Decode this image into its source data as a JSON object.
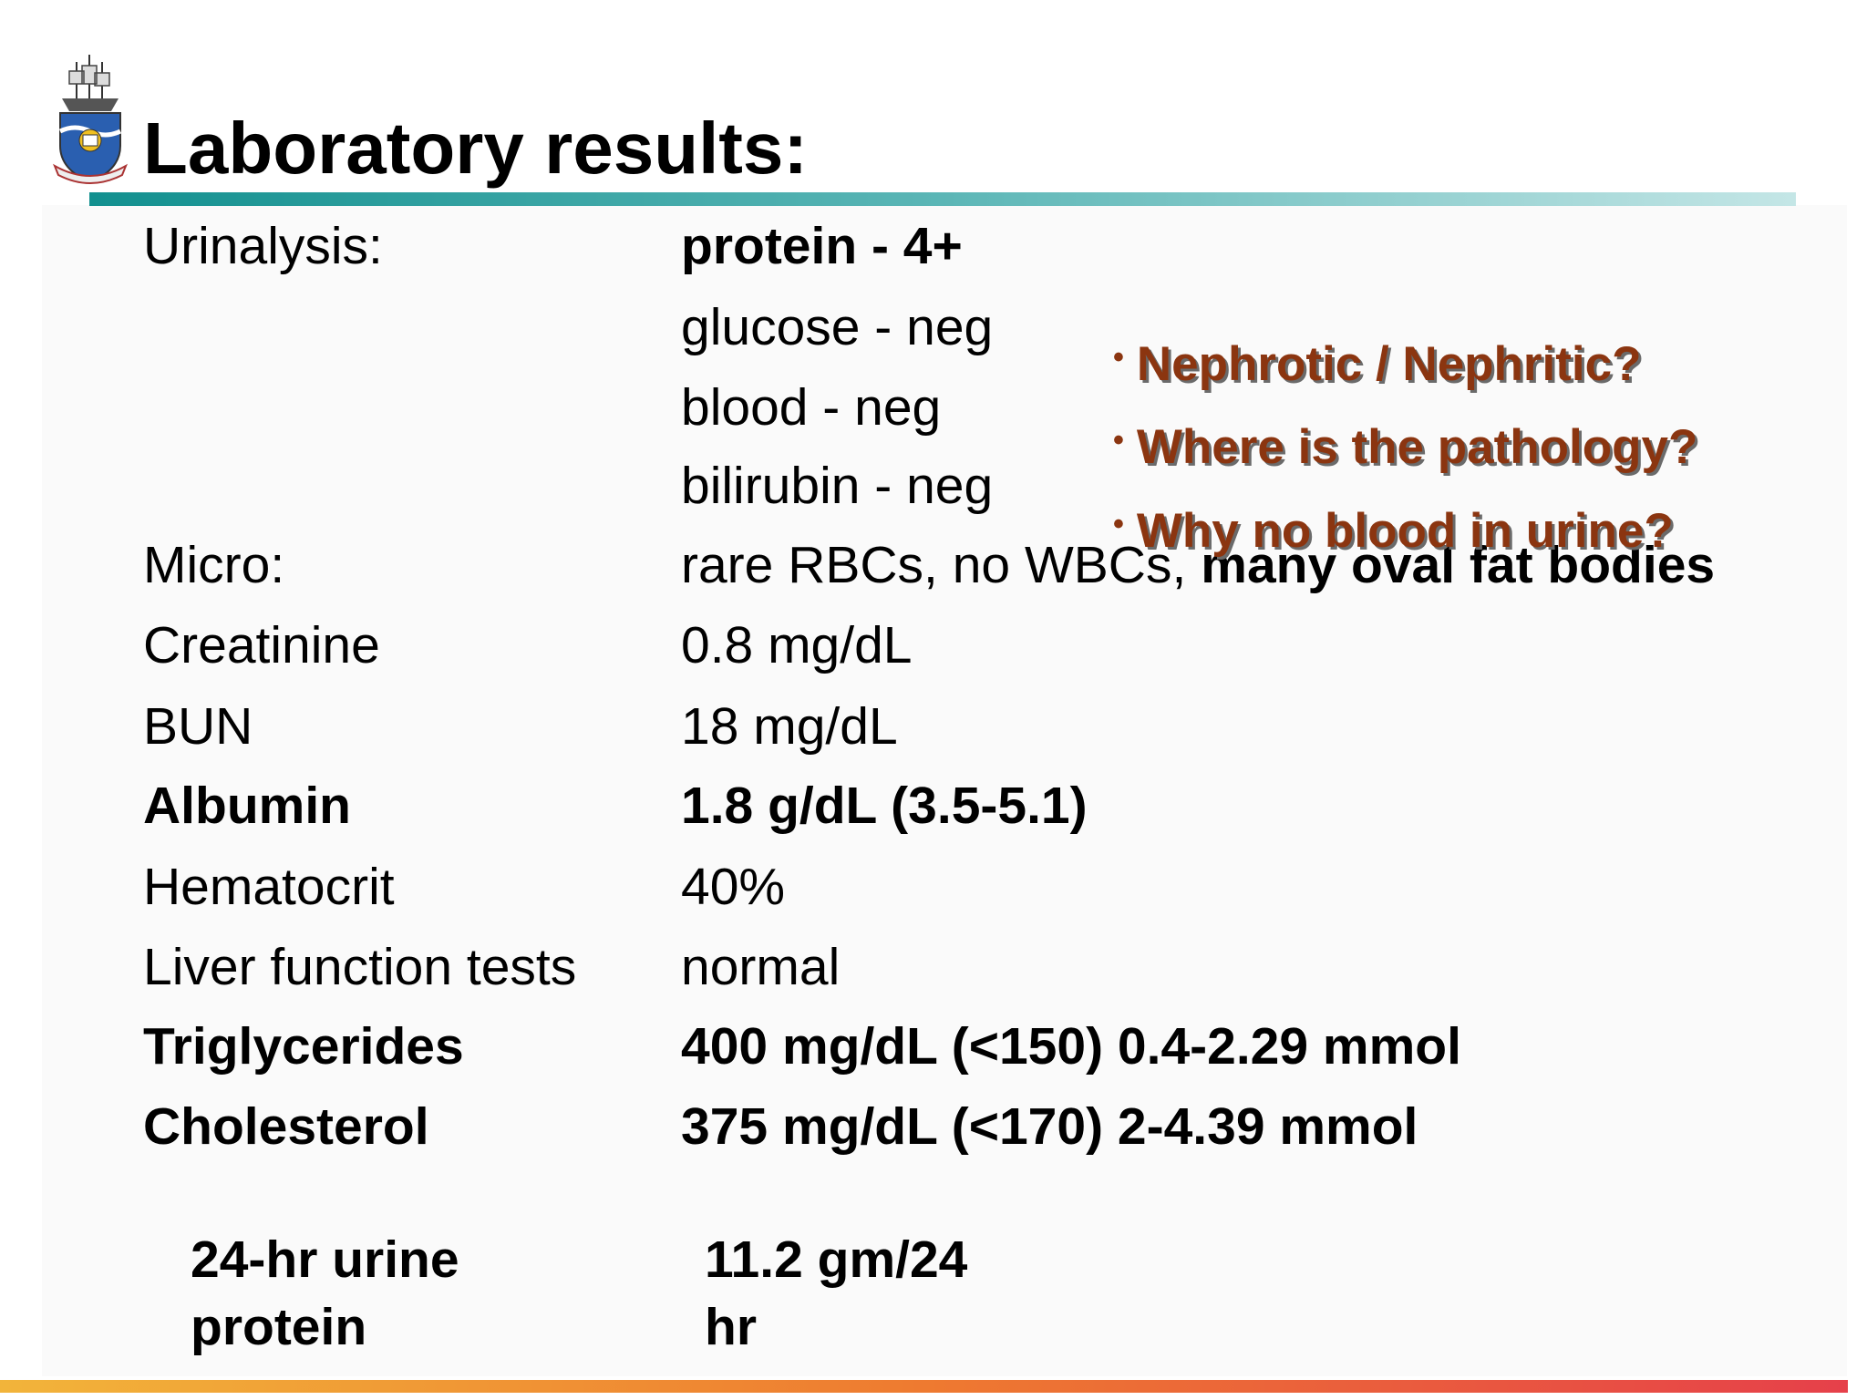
{
  "header": {
    "title": "Laboratory results:"
  },
  "results": {
    "urinalysis": {
      "label": "Urinalysis:",
      "values": [
        "protein - 4+",
        "glucose - neg",
        "blood - neg",
        "bilirubin - neg"
      ]
    },
    "micro": {
      "label": "Micro:",
      "value": "rare RBCs, no WBCs,",
      "value_bold": "many oval fat bodies"
    },
    "rows": [
      {
        "label": "Creatinine",
        "value": "0.8 mg/dL"
      },
      {
        "label": "BUN",
        "value": "18 mg/dL"
      },
      {
        "label": "Albumin",
        "value": "1.8 g/dL (3.5-5.1)"
      },
      {
        "label": "Hematocrit",
        "value": "40%"
      },
      {
        "label": "Liver function tests",
        "value": "normal"
      },
      {
        "label": "Triglycerides",
        "value": "400 mg/dL (<150) 0.4-2.29 mmol"
      },
      {
        "label": "Cholesterol",
        "value": "375 mg/dL (<170) 2-4.39 mmol"
      }
    ],
    "urine_24hr": {
      "label": "24-hr urine protein",
      "value": "11.2 gm/24 hr"
    }
  },
  "questions": [
    "Nephrotic / Nephritic?",
    "Where is the pathology?",
    "Why no blood in urine?"
  ]
}
